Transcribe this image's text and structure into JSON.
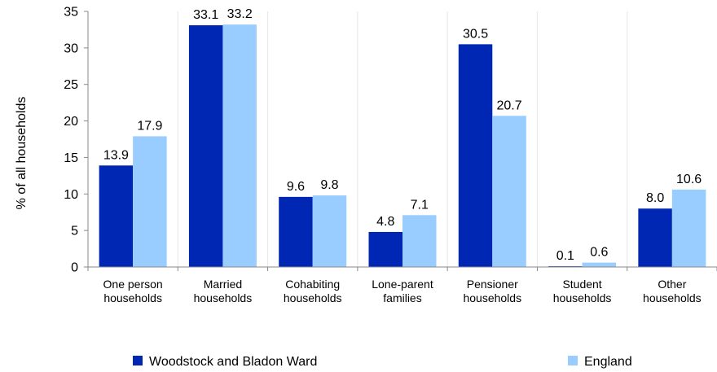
{
  "chart_data": {
    "type": "bar",
    "categories": [
      [
        "One person",
        "households"
      ],
      [
        "Married",
        "households"
      ],
      [
        "Cohabiting",
        "households"
      ],
      [
        "Lone-parent",
        "families"
      ],
      [
        "Pensioner",
        "households"
      ],
      [
        "Student",
        "households"
      ],
      [
        "Other",
        "households"
      ]
    ],
    "series": [
      {
        "name": "Woodstock and Bladon Ward",
        "color": "#0027b3",
        "values": [
          13.9,
          33.1,
          9.6,
          4.8,
          30.5,
          0.1,
          8.0
        ]
      },
      {
        "name": "England",
        "color": "#99ccff",
        "values": [
          17.9,
          33.2,
          9.8,
          7.1,
          20.7,
          0.6,
          10.6
        ]
      }
    ],
    "ylabel": "% of all households",
    "ylim": [
      0,
      35
    ],
    "yticks": [
      0,
      5,
      10,
      15,
      20,
      25,
      30,
      35
    ],
    "grid": "vertical separators between categories",
    "legend": "bottom"
  }
}
